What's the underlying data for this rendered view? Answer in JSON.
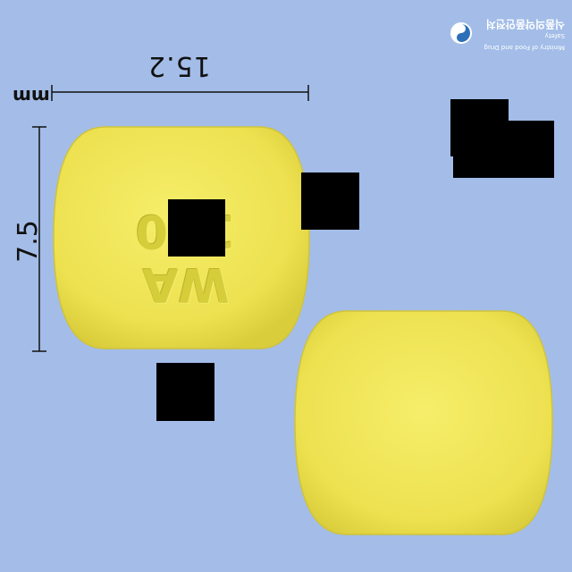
{
  "image": {
    "description_role": "Pill identification photo: front and back of a yellow oblong tablet with dimension markers",
    "background_color": "#a3bde8",
    "tablet_color": "#f0e654"
  },
  "dimensions": {
    "width_value": "15.2",
    "height_value": "7.5",
    "unit": "mm"
  },
  "tablet": {
    "imprint": "WA 150"
  },
  "logo": {
    "org_name_english": "Ministry of Food and Drug Safety",
    "org_name_korean": "식품의약품안전처",
    "icon": "mfds-emblem-icon"
  }
}
